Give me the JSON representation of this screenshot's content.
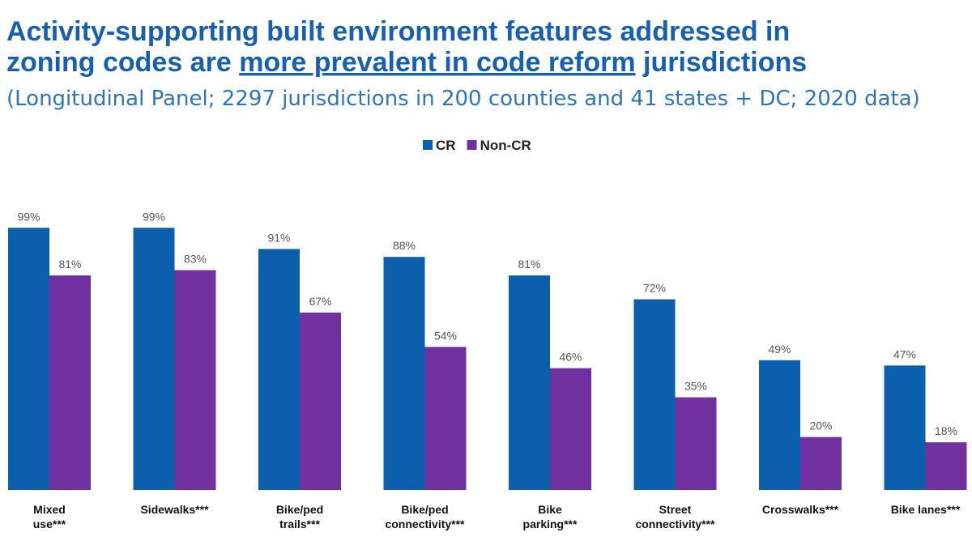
{
  "chart_data": {
    "type": "bar",
    "title_lines": [
      [
        "Activity-supporting built environment features addressed in"
      ],
      [
        "zoning codes are ",
        "more prevalent in code reform",
        " jurisdictions"
      ]
    ],
    "subtitle": "(Longitudinal Panel; 2297 jurisdictions in 200 counties and 41 states + DC; 2020 data)",
    "categories": [
      "Mixed\nuse***",
      "Sidewalks***",
      "Bike/ped\ntrails***",
      "Bike/ped\nconnectivity***",
      "Bike\nparking***",
      "Street\nconnectivity***",
      "Crosswalks***",
      "Bike lanes***"
    ],
    "series": [
      {
        "name": "CR",
        "color": "#0b5fad",
        "values": [
          99,
          99,
          91,
          88,
          81,
          72,
          49,
          47
        ],
        "value_labels": [
          "99%",
          "99%",
          "91%",
          "88%",
          "81%",
          "72%",
          "49%",
          "47%"
        ]
      },
      {
        "name": "Non-CR",
        "color": "#7030a0",
        "values": [
          81,
          83,
          67,
          54,
          46,
          35,
          20,
          18
        ],
        "value_labels": [
          "81%",
          "83%",
          "67%",
          "54%",
          "46%",
          "35%",
          "20%",
          "18%"
        ]
      }
    ],
    "ylim": [
      0,
      100
    ],
    "legend": "top"
  }
}
